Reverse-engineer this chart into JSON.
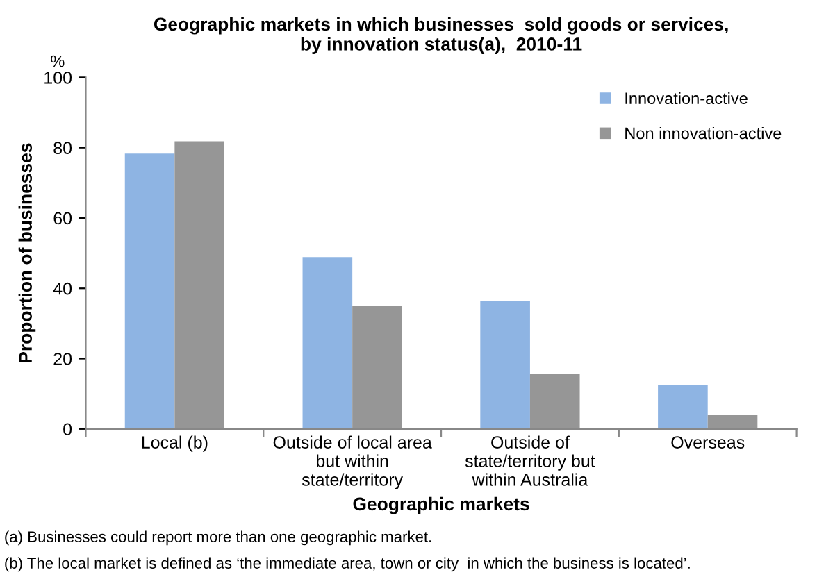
{
  "chart_data": {
    "type": "bar",
    "title": "Geographic markets in which businesses  sold goods or services,\nby innovation status(a),  2010-11",
    "xlabel": "Geographic markets",
    "ylabel": "Proportion of businesses",
    "categories": [
      "Local (b)",
      "Outside of local area\nbut within\nstate/territory",
      "Outside of\nstate/territory but\nwithin Australia",
      "Overseas"
    ],
    "series": [
      {
        "name": "Innovation-active",
        "color": "#8eb4e3",
        "values": [
          78.3,
          48.9,
          36.5,
          12.4
        ]
      },
      {
        "name": "Non innovation-active",
        "color": "#969696",
        "values": [
          81.8,
          34.9,
          15.6,
          3.9
        ]
      }
    ],
    "ylim": [
      0,
      100
    ],
    "yticks": [
      0,
      20,
      40,
      60,
      80,
      100
    ],
    "grid": false,
    "legend": "top right",
    "annotations": [
      "%",
      "(a) Businesses could report more than one geographic market.",
      "(b) The local market is defined as ‘the immediate area, town or city  in which the business is located’."
    ]
  }
}
